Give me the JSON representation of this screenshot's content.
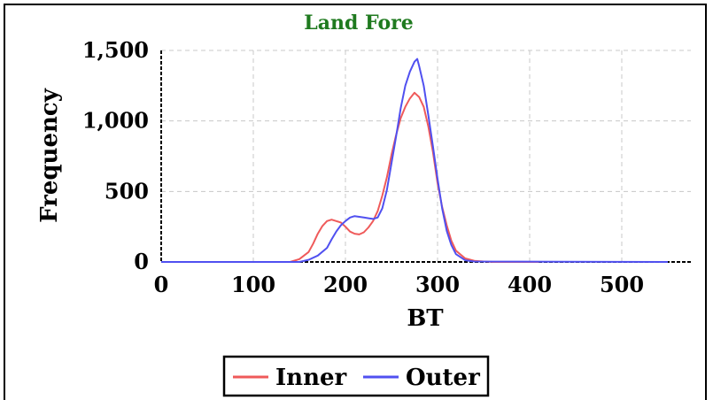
{
  "chart_data": {
    "type": "line",
    "title": "Land Fore",
    "title_color": "#1f7a1f",
    "xlabel": "BT",
    "ylabel": "Frequency",
    "xlim": [
      0,
      575
    ],
    "ylim": [
      0,
      1500
    ],
    "x_ticks": [
      0,
      100,
      200,
      300,
      400,
      500
    ],
    "x_tick_labels": [
      "0",
      "100",
      "200",
      "300",
      "400",
      "500"
    ],
    "y_ticks": [
      0,
      500,
      1000,
      1500
    ],
    "y_tick_labels": [
      "0",
      "500",
      "1,000",
      "1,500"
    ],
    "grid": true,
    "legend_position": "bottom-center",
    "series": [
      {
        "name": "Inner",
        "color": "#ef5a5a",
        "x": [
          0,
          140,
          150,
          160,
          165,
          170,
          175,
          180,
          185,
          190,
          195,
          200,
          205,
          210,
          215,
          220,
          225,
          230,
          235,
          240,
          245,
          250,
          255,
          260,
          265,
          270,
          275,
          280,
          285,
          290,
          295,
          300,
          305,
          310,
          315,
          320,
          330,
          340,
          350,
          360,
          410
        ],
        "y": [
          0,
          0,
          20,
          70,
          130,
          200,
          255,
          290,
          300,
          290,
          280,
          250,
          215,
          200,
          195,
          210,
          245,
          290,
          360,
          470,
          600,
          760,
          900,
          1020,
          1100,
          1160,
          1200,
          1170,
          1100,
          960,
          780,
          560,
          390,
          260,
          150,
          80,
          25,
          8,
          3,
          0,
          0
        ]
      },
      {
        "name": "Outer",
        "color": "#5050f0",
        "x": [
          0,
          150,
          160,
          170,
          180,
          185,
          190,
          195,
          200,
          205,
          210,
          215,
          220,
          225,
          230,
          235,
          240,
          245,
          250,
          255,
          260,
          265,
          270,
          275,
          278,
          280,
          285,
          290,
          295,
          300,
          305,
          310,
          315,
          320,
          330,
          340,
          550
        ],
        "y": [
          0,
          0,
          15,
          45,
          100,
          160,
          215,
          260,
          290,
          315,
          325,
          320,
          315,
          310,
          305,
          315,
          380,
          510,
          700,
          890,
          1090,
          1250,
          1350,
          1420,
          1440,
          1390,
          1250,
          1040,
          820,
          590,
          380,
          220,
          120,
          55,
          12,
          3,
          0
        ]
      }
    ]
  }
}
